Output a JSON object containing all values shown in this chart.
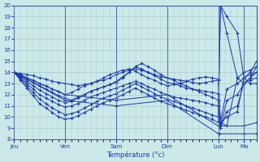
{
  "background_color": "#cce8e8",
  "grid_color": "#aacccc",
  "line_color": "#1a3aaa",
  "marker": "+",
  "markersize": 3.5,
  "linewidth": 0.7,
  "ylim": [
    8,
    20
  ],
  "yticks": [
    8,
    9,
    10,
    11,
    12,
    13,
    14,
    15,
    16,
    17,
    18,
    19,
    20
  ],
  "xlabel": "Température (°c)",
  "days_x": [
    0,
    48,
    96,
    144,
    192,
    216
  ],
  "day_labels": [
    "Jeu",
    "Ven",
    "Sam",
    "Dim",
    "Lun",
    "Ma"
  ],
  "xlim": [
    0,
    228
  ],
  "series": [
    {
      "x": [
        0,
        6,
        12,
        18,
        24,
        30,
        36,
        42,
        48,
        54,
        60,
        66,
        72,
        78,
        84,
        90,
        96,
        102,
        108,
        114,
        120,
        126,
        132,
        138,
        144,
        150,
        156,
        162,
        168,
        174,
        180,
        186,
        192,
        194,
        200,
        210,
        216,
        222,
        228
      ],
      "y": [
        14.0,
        13.9,
        13.8,
        13.7,
        13.5,
        13.4,
        13.2,
        13.1,
        13.0,
        12.9,
        12.8,
        12.9,
        13.0,
        13.2,
        13.3,
        13.5,
        13.8,
        14.0,
        14.2,
        14.3,
        14.2,
        14.0,
        13.8,
        13.6,
        13.5,
        13.4,
        13.3,
        13.2,
        13.1,
        13.0,
        13.1,
        13.2,
        13.3,
        9.5,
        9.2,
        13.5,
        14.0,
        14.2,
        14.5
      ]
    },
    {
      "x": [
        0,
        6,
        12,
        18,
        24,
        30,
        36,
        42,
        48,
        54,
        60,
        66,
        72,
        78,
        84,
        90,
        96,
        102,
        108,
        114,
        120,
        126,
        132,
        138,
        144,
        150,
        156,
        162,
        168,
        174,
        180,
        186,
        192,
        194,
        200,
        210,
        216,
        222,
        228
      ],
      "y": [
        14.0,
        13.8,
        13.5,
        13.3,
        13.0,
        12.8,
        12.5,
        12.3,
        12.0,
        12.2,
        12.5,
        12.8,
        13.0,
        13.2,
        13.5,
        13.8,
        14.0,
        14.2,
        14.3,
        14.1,
        13.8,
        13.5,
        13.3,
        13.0,
        12.8,
        12.9,
        13.0,
        13.2,
        13.4,
        13.5,
        13.6,
        13.5,
        13.4,
        9.5,
        12.5,
        13.0,
        13.5,
        13.8,
        14.0
      ]
    },
    {
      "x": [
        0,
        6,
        12,
        18,
        24,
        30,
        36,
        42,
        48,
        54,
        60,
        66,
        72,
        78,
        84,
        90,
        96,
        102,
        108,
        114,
        120,
        126,
        132,
        138,
        144,
        150,
        156,
        162,
        168,
        174,
        180,
        186,
        192,
        194,
        200,
        210,
        216,
        222,
        228
      ],
      "y": [
        14.0,
        13.7,
        13.4,
        13.1,
        12.8,
        12.5,
        12.2,
        11.9,
        11.7,
        11.5,
        11.8,
        12.0,
        12.3,
        12.5,
        12.7,
        12.9,
        13.1,
        13.5,
        14.0,
        14.5,
        14.3,
        14.0,
        13.7,
        13.4,
        13.1,
        13.0,
        12.8,
        12.6,
        12.5,
        12.4,
        12.3,
        12.2,
        12.1,
        9.0,
        11.5,
        12.0,
        13.0,
        13.3,
        13.5
      ]
    },
    {
      "x": [
        0,
        6,
        12,
        18,
        24,
        30,
        36,
        42,
        48,
        54,
        60,
        66,
        72,
        78,
        84,
        90,
        96,
        102,
        108,
        114,
        120,
        126,
        132,
        138,
        144,
        150,
        156,
        162,
        168,
        174,
        180,
        186,
        192,
        194,
        200,
        210,
        216,
        222,
        228
      ],
      "y": [
        14.0,
        13.6,
        13.2,
        12.8,
        12.4,
        12.1,
        11.8,
        11.5,
        11.3,
        11.4,
        11.7,
        12.0,
        12.3,
        12.5,
        12.7,
        12.9,
        13.2,
        13.6,
        14.0,
        14.5,
        14.8,
        14.5,
        14.2,
        13.8,
        13.5,
        13.3,
        13.0,
        12.8,
        12.5,
        12.3,
        12.0,
        11.8,
        11.5,
        9.0,
        10.5,
        11.0,
        13.0,
        13.5,
        14.5
      ]
    },
    {
      "x": [
        0,
        6,
        12,
        18,
        24,
        30,
        36,
        42,
        48,
        54,
        60,
        66,
        72,
        78,
        84,
        90,
        96,
        102,
        108,
        114,
        120,
        126,
        132,
        138,
        144,
        150,
        156,
        162,
        168,
        174,
        180,
        186,
        192,
        194,
        200,
        210,
        216,
        222,
        228
      ],
      "y": [
        14.0,
        13.5,
        13.0,
        12.5,
        12.0,
        11.7,
        11.4,
        11.1,
        10.9,
        11.0,
        11.2,
        11.5,
        11.8,
        12.0,
        12.2,
        12.4,
        12.6,
        12.8,
        13.0,
        13.2,
        13.0,
        12.7,
        12.5,
        12.2,
        12.0,
        11.8,
        11.7,
        11.6,
        11.5,
        11.4,
        11.3,
        11.1,
        11.0,
        9.5,
        10.0,
        10.5,
        13.5,
        14.0,
        15.0
      ]
    },
    {
      "x": [
        0,
        6,
        12,
        18,
        24,
        30,
        36,
        42,
        48,
        54,
        60,
        66,
        72,
        78,
        84,
        90,
        96,
        102,
        108,
        114,
        120,
        126,
        132,
        138,
        144,
        150,
        156,
        162,
        168,
        174,
        180,
        186,
        192,
        194,
        200,
        210,
        216,
        222,
        228
      ],
      "y": [
        14.0,
        13.4,
        12.8,
        12.2,
        11.6,
        11.2,
        10.8,
        10.5,
        10.2,
        10.3,
        10.5,
        10.8,
        11.1,
        11.4,
        11.7,
        11.9,
        12.1,
        12.4,
        12.7,
        13.0,
        12.7,
        12.4,
        12.1,
        11.8,
        11.6,
        11.4,
        11.2,
        11.0,
        10.8,
        10.6,
        10.4,
        10.2,
        10.0,
        20.0,
        17.5,
        13.5,
        13.0,
        13.5,
        14.0
      ]
    },
    {
      "x": [
        0,
        6,
        12,
        18,
        24,
        30,
        36,
        42,
        48,
        54,
        60,
        66,
        72,
        78,
        84,
        90,
        96,
        102,
        108,
        114,
        120,
        126,
        132,
        138,
        144,
        150,
        156,
        162,
        168,
        174,
        180,
        186,
        192,
        194,
        200,
        210,
        216,
        222,
        228
      ],
      "y": [
        14.0,
        13.3,
        12.6,
        11.9,
        11.2,
        10.8,
        10.4,
        10.0,
        9.8,
        9.9,
        10.1,
        10.4,
        10.7,
        11.0,
        11.3,
        11.5,
        11.7,
        12.0,
        12.3,
        12.6,
        12.3,
        12.0,
        11.7,
        11.4,
        11.2,
        11.0,
        10.8,
        10.6,
        10.4,
        10.2,
        10.0,
        9.8,
        9.5,
        20.0,
        19.0,
        17.5,
        13.5,
        13.0,
        13.0
      ]
    },
    {
      "x": [
        0,
        48,
        96,
        144,
        192,
        193,
        216,
        228
      ],
      "y": [
        14.0,
        11.5,
        11.0,
        11.5,
        8.5,
        8.5,
        8.5,
        8.5
      ]
    },
    {
      "x": [
        0,
        48,
        96,
        144,
        192,
        193,
        216,
        228
      ],
      "y": [
        14.0,
        12.0,
        11.5,
        12.0,
        9.2,
        9.2,
        9.2,
        9.5
      ]
    }
  ]
}
